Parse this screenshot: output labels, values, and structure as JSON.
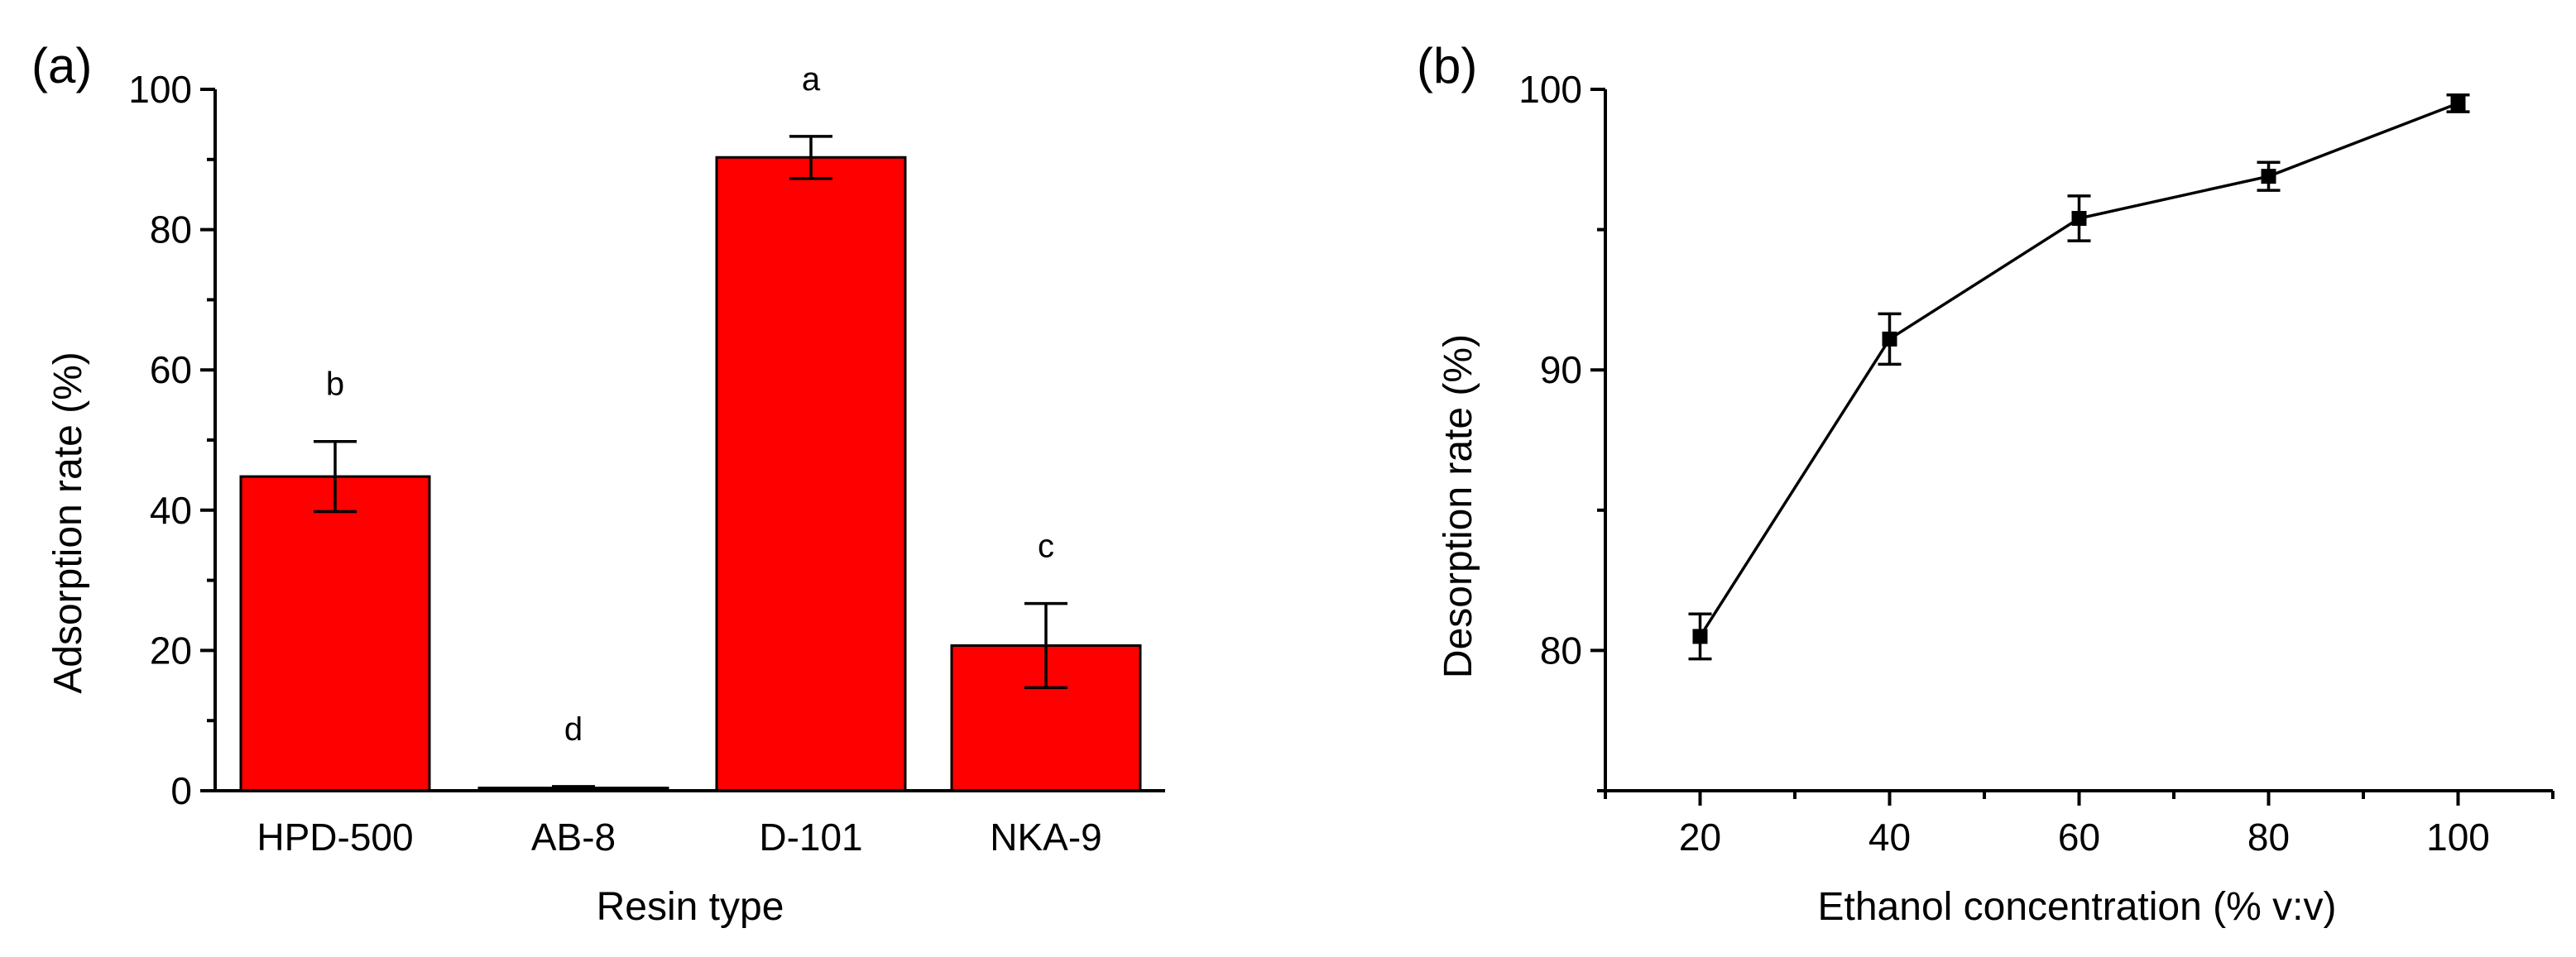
{
  "chart_data": [
    {
      "panel": "(a)",
      "type": "bar",
      "categories": [
        "HPD-500",
        "AB-8",
        "D-101",
        "NKA-9"
      ],
      "values": [
        44.8,
        0.4,
        90.3,
        20.7
      ],
      "errors": [
        5.0,
        0.2,
        3.0,
        6.0
      ],
      "significance": [
        "b",
        "d",
        "a",
        "c"
      ],
      "xlabel": "Resin type",
      "ylabel": "Adsorption rate (%)",
      "ylim": [
        0,
        100
      ],
      "yticks": [
        0,
        20,
        40,
        60,
        80,
        100
      ],
      "bar_color": "#ff0000",
      "grid": false
    },
    {
      "panel": "(b)",
      "type": "line",
      "x": [
        20,
        40,
        60,
        80,
        100
      ],
      "values": [
        80.5,
        91.1,
        95.4,
        96.9,
        99.5
      ],
      "errors": [
        0.8,
        0.9,
        0.8,
        0.5,
        0.3
      ],
      "xlabel": "Ethanol concentration (% v:v)",
      "ylabel": "Desorption rate (%)",
      "xlim": [
        10,
        110
      ],
      "ylim": [
        75,
        100
      ],
      "xticks": [
        20,
        40,
        60,
        80,
        100
      ],
      "yticks": [
        80,
        90,
        100
      ],
      "line_color": "#000000",
      "grid": false
    }
  ]
}
